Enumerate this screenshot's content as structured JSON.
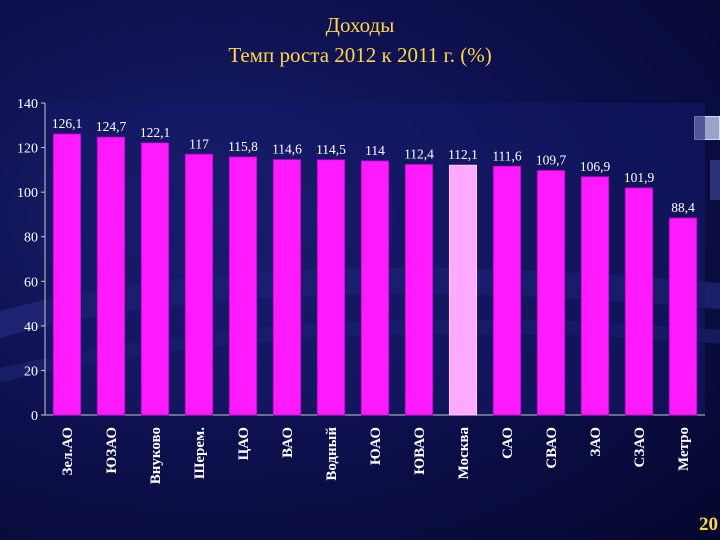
{
  "title": "Доходы",
  "subtitle": "Темп роста 2012 к 2011 г. (%)",
  "page_number": "20",
  "colors": {
    "bar": "#ff1aff",
    "bar_highlight": "#ffaaff",
    "text": "#ffffff",
    "title": "#ffd84a",
    "plot_bg": "#151a6a"
  },
  "chart_data": {
    "type": "bar",
    "categories": [
      "Зел.АО",
      "ЮЗАО",
      "Внуково",
      "Шерем.",
      "ЦАО",
      "ВАО",
      "Водный",
      "ЮАО",
      "ЮВАО",
      "Москва",
      "САО",
      "СВАО",
      "ЗАО",
      "СЗАО",
      "Метро"
    ],
    "values": [
      126.1,
      124.7,
      122.1,
      117,
      115.8,
      114.6,
      114.5,
      114,
      112.4,
      112.1,
      111.6,
      109.7,
      106.9,
      101.9,
      88.4
    ],
    "value_labels": [
      "126,1",
      "124,7",
      "122,1",
      "117",
      "115,8",
      "114,6",
      "114,5",
      "114",
      "112,4",
      "112,1",
      "111,6",
      "109,7",
      "106,9",
      "101,9",
      "88,4"
    ],
    "highlight_category": "Москва",
    "ylim": [
      0,
      140
    ],
    "yticks": [
      0,
      20,
      40,
      60,
      80,
      100,
      120,
      140
    ],
    "grid": false,
    "legend": "none"
  }
}
